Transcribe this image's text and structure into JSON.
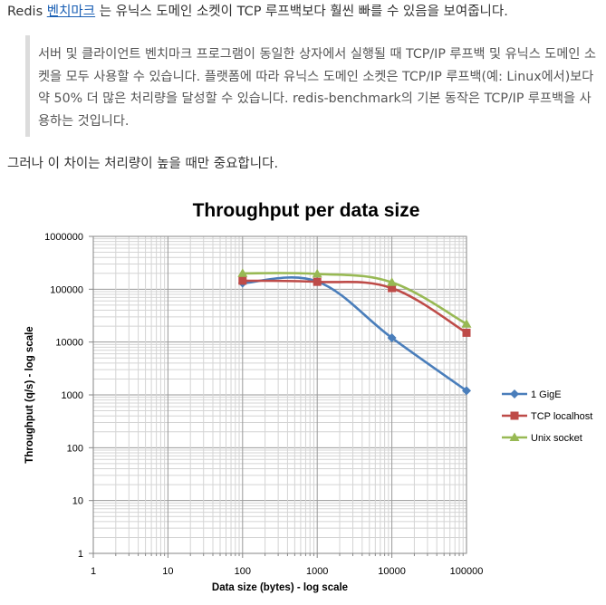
{
  "text": {
    "intro_prefix": "Redis ",
    "intro_link": "벤치마크",
    "intro_suffix": " 는 유닉스 도메인 소켓이 TCP 루프백보다 훨씬 빠를 수 있음을 보여줍니다.",
    "quote": "서버 및 클라이언트 벤치마크 프로그램이 동일한 상자에서 실행될 때 TCP/IP 루프백 및 유닉스 도메인 소켓을 모두 사용할 수 있습니다. 플랫폼에 따라 유닉스 도메인 소켓은 TCP/IP 루프백(예: Linux에서)보다 약 50% 더 많은 처리량을 달성할 수 있습니다. redis-benchmark의 기본 동작은 TCP/IP 루프백을 사용하는 것입니다.",
    "note": "그러나 이 차이는 처리량이 높을 때만 중요합니다."
  },
  "chart_data": {
    "type": "line",
    "title": "Throughput per data size",
    "xlabel": "Data size (bytes) - log scale",
    "ylabel": "Throughput (q/s) - log scale",
    "xscale": "log",
    "yscale": "log",
    "xlim": [
      1,
      100000
    ],
    "ylim": [
      1,
      1000000
    ],
    "x_ticks": [
      "1",
      "10",
      "100",
      "1000",
      "10000",
      "100000"
    ],
    "y_ticks": [
      "1",
      "10",
      "100",
      "1000",
      "10000",
      "100000",
      "1000000"
    ],
    "grid": true,
    "legend_position": "right",
    "x": [
      100,
      1000,
      10000,
      100000
    ],
    "series": [
      {
        "name": "1 GigE",
        "color": "#4a7ebb",
        "marker": "diamond",
        "values": [
          130000,
          140000,
          12000,
          1200
        ]
      },
      {
        "name": "TCP localhost",
        "color": "#be4b48",
        "marker": "square",
        "values": [
          145000,
          138000,
          105000,
          15000
        ]
      },
      {
        "name": "Unix socket",
        "color": "#98b954",
        "marker": "triangle",
        "values": [
          200000,
          195000,
          135000,
          22000
        ]
      }
    ]
  }
}
